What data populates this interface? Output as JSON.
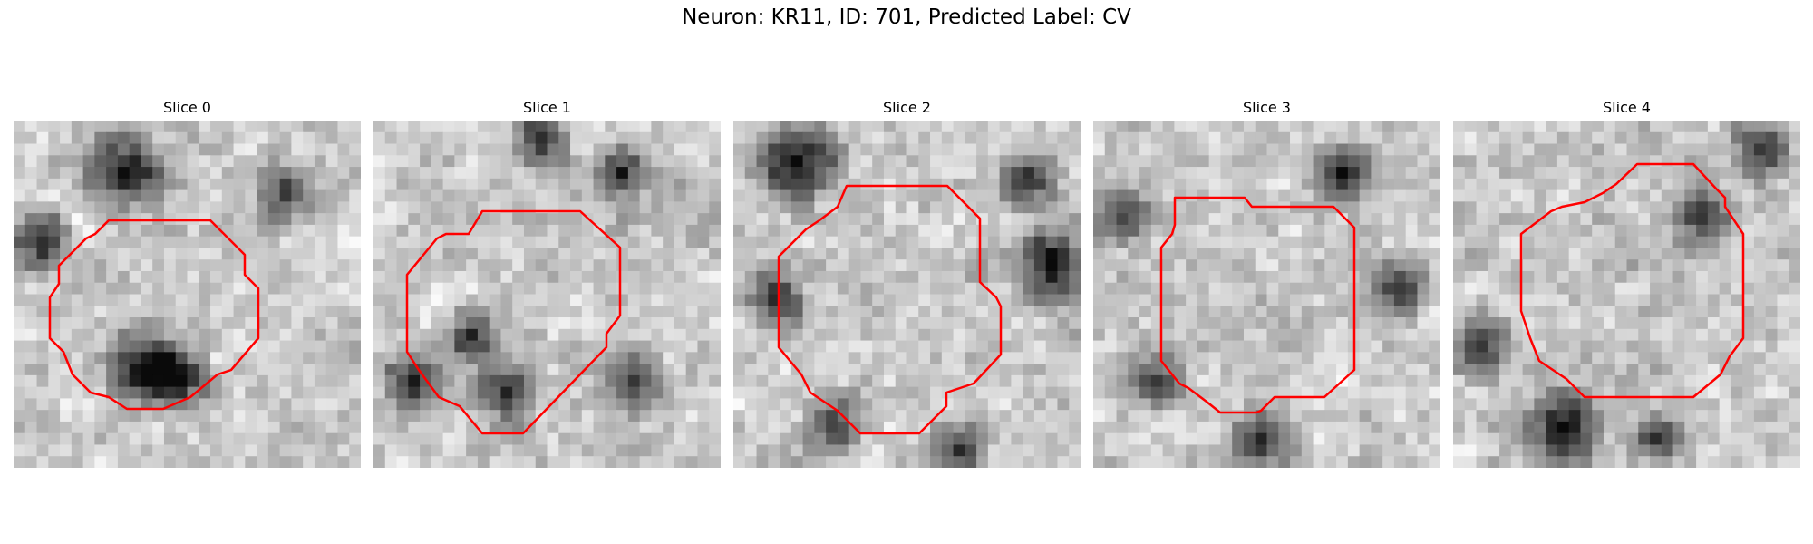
{
  "figure": {
    "title": "Neuron: KR11, ID: 701, Predicted Label: CV",
    "contour_color": "#ff0000",
    "colormap": "gray"
  },
  "panels": [
    {
      "title": "Slice 0"
    },
    {
      "title": "Slice 1"
    },
    {
      "title": "Slice 2"
    },
    {
      "title": "Slice 3"
    },
    {
      "title": "Slice 4"
    }
  ]
}
